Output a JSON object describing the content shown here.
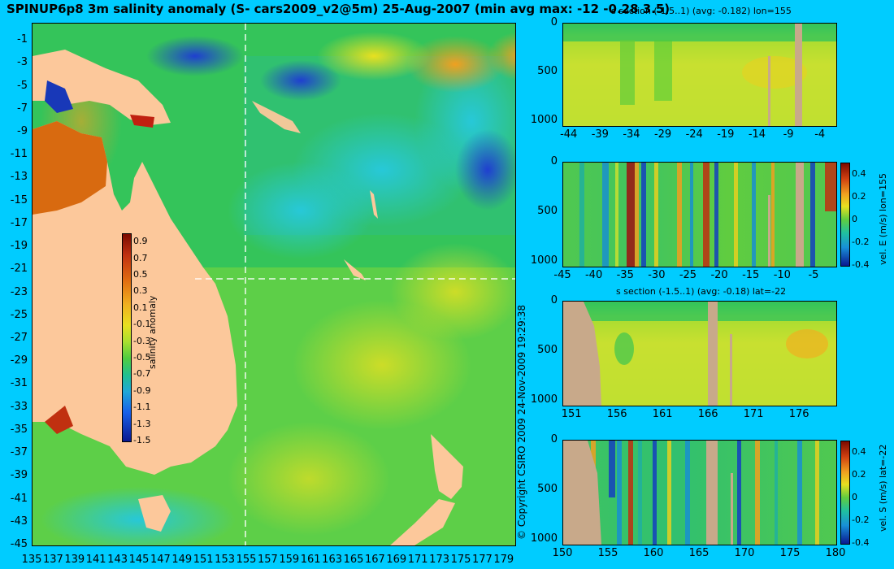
{
  "title": "SPINUP6p8 3m salinity anomaly (S- cars2009_v2@5m) 25-Aug-2007 (min avg max: -12 -0.28 3.5)",
  "copyright": "© Copyright CSIRO 2009   24-Nov-2009 19:29:38",
  "colors": {
    "background": "#00ccff",
    "land": "#fcc89b",
    "section_land": "#c8a98a"
  },
  "chart_data": [
    {
      "type": "heatmap",
      "name": "map",
      "title": "SPINUP6p8 3m salinity anomaly (S- cars2009_v2@5m) 25-Aug-2007 (min avg max: -12 -0.28 3.5)",
      "x_ticks": [
        "135",
        "137",
        "139",
        "141",
        "143",
        "145",
        "147",
        "149",
        "151",
        "153",
        "155",
        "157",
        "159",
        "161",
        "163",
        "165",
        "167",
        "169",
        "171",
        "173",
        "175",
        "177",
        "179"
      ],
      "y_ticks": [
        "-1",
        "-3",
        "-5",
        "-7",
        "-9",
        "-11",
        "-13",
        "-15",
        "-17",
        "-19",
        "-21",
        "-23",
        "-25",
        "-27",
        "-29",
        "-31",
        "-33",
        "-35",
        "-37",
        "-39",
        "-41",
        "-43",
        "-45"
      ],
      "xlim": [
        135,
        180
      ],
      "ylim": [
        -45,
        0.5
      ],
      "section_lines": {
        "lon": 155,
        "lat": -22
      },
      "colorbar": {
        "label": "salinity anomaly",
        "range": [
          -1.5,
          1.0
        ],
        "ticks": [
          "0.9",
          "0.7",
          "0.5",
          "0.3",
          "0.1",
          "-0.1",
          "-0.3",
          "-0.5",
          "-0.7",
          "-0.9",
          "-1.1",
          "-1.3",
          "-1.5"
        ]
      }
    },
    {
      "type": "heatmap",
      "name": "salinity-section-lon155",
      "title": "s section (-1.5..1) (avg: -0.182) lon=155",
      "y_ticks": [
        "0",
        "500",
        "1000"
      ],
      "x_ticks": [
        "-44",
        "-39",
        "-34",
        "-29",
        "-24",
        "-19",
        "-14",
        "-9",
        "-4"
      ],
      "xlim": [
        -45,
        -1.5
      ],
      "ylim": [
        0,
        1050
      ]
    },
    {
      "type": "heatmap",
      "name": "velocity-east-lon155",
      "title": "",
      "y_ticks": [
        "0",
        "500",
        "1000"
      ],
      "x_ticks": [
        "-45",
        "-40",
        "-35",
        "-30",
        "-25",
        "-20",
        "-15",
        "-10",
        "-5"
      ],
      "xlim": [
        -45,
        -1.5
      ],
      "ylim": [
        0,
        1050
      ],
      "colorbar": {
        "label": "vel. E (m/s) lon=155",
        "range": [
          -0.4,
          0.5
        ],
        "ticks": [
          "0.4",
          "0.2",
          "0",
          "-0.2",
          "-0.4"
        ]
      }
    },
    {
      "type": "heatmap",
      "name": "salinity-section-lat-22",
      "title": "s section (-1.5..1) (avg: -0.18) lat=-22",
      "y_ticks": [
        "0",
        "500",
        "1000"
      ],
      "x_ticks": [
        "151",
        "156",
        "161",
        "166",
        "171",
        "176"
      ],
      "xlim": [
        150,
        180
      ],
      "ylim": [
        0,
        1050
      ]
    },
    {
      "type": "heatmap",
      "name": "velocity-south-lat-22",
      "title": "",
      "y_ticks": [
        "0",
        "500",
        "1000"
      ],
      "x_ticks": [
        "150",
        "155",
        "160",
        "165",
        "170",
        "175",
        "180"
      ],
      "xlim": [
        150,
        180
      ],
      "ylim": [
        0,
        1050
      ],
      "colorbar": {
        "label": "vel. S (m/s) lat=-22",
        "range": [
          -0.4,
          0.5
        ],
        "ticks": [
          "0.4",
          "0.2",
          "0",
          "-0.2",
          "-0.4"
        ]
      }
    }
  ]
}
